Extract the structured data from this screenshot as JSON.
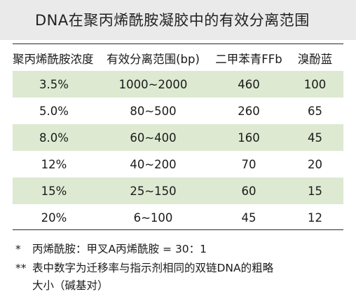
{
  "title": "DNA在聚丙烯酰胺凝胶中的有效分离范围",
  "table": {
    "headers": [
      "聚丙烯酰胺浓度",
      "有效分离范围(bp)",
      "二甲苯青FFb",
      "溴酚蓝"
    ],
    "rows": [
      [
        "3.5%",
        "1000~2000",
        "460",
        "100"
      ],
      [
        "5.0%",
        "80~500",
        "260",
        "65"
      ],
      [
        "8.0%",
        "60~400",
        "160",
        "45"
      ],
      [
        "12%",
        "40~200",
        "70",
        "20"
      ],
      [
        "15%",
        "25~150",
        "60",
        "15"
      ],
      [
        "20%",
        "6~100",
        "45",
        "12"
      ]
    ]
  },
  "notes": {
    "note1_mark": "*",
    "note1_text": "丙烯酰胺：甲叉A丙烯酰胺 = 30：1",
    "note2_mark": "**",
    "note2_line1": "表中数字为迁移率与指示剂相同的双链DNA的粗略",
    "note2_line2": "大小（碱基对）"
  },
  "colors": {
    "title_band": "#eaeaea",
    "shaded_row": "#dde9d1",
    "rule": "#2b2b2b"
  }
}
